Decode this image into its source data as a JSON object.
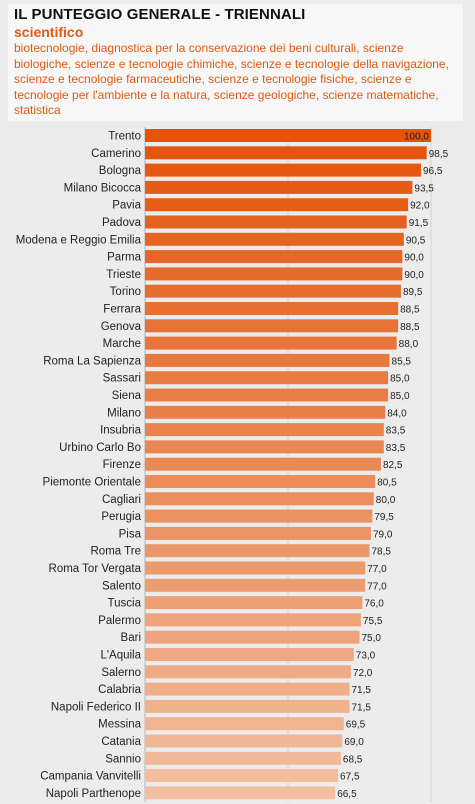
{
  "chart_data": {
    "type": "bar",
    "orientation": "horizontal",
    "title": "IL PUNTEGGIO GENERALE - TRIENNALI",
    "subtitle": "scientifico",
    "description": "biotecnologie, diagnostica per la conservazione dei beni culturali, scienze biologiche, scienze e tecnologie chimiche, scienze e tecnologie della navigazione, scienze e tecnologie farmaceutiche, scienze e tecnologie fisiche, scienze e tecnologie per l'ambiente e la natura, scienze geologiche, scienze matematiche, statistica",
    "categories": [
      "Trento",
      "Camerino",
      "Bologna",
      "Milano Bicocca",
      "Pavia",
      "Padova",
      "Modena e Reggio Emilia",
      "Parma",
      "Trieste",
      "Torino",
      "Ferrara",
      "Genova",
      "Marche",
      "Roma La Sapienza",
      "Sassari",
      "Siena",
      "Milano",
      "Insubria",
      "Urbino Carlo Bo",
      "Firenze",
      "Piemonte Orientale",
      "Cagliari",
      "Perugia",
      "Pisa",
      "Roma Tre",
      "Roma Tor Vergata",
      "Salento",
      "Tuscia",
      "Palermo",
      "Bari",
      "L'Aquila",
      "Salerno",
      "Calabria",
      "Napoli Federico II",
      "Messina",
      "Catania",
      "Sannio",
      "Campania Vanvitelli",
      "Napoli Parthenope"
    ],
    "values": [
      100.0,
      98.5,
      96.5,
      93.5,
      92.0,
      91.5,
      90.5,
      90.0,
      90.0,
      89.5,
      88.5,
      88.5,
      88.0,
      85.5,
      85.0,
      85.0,
      84.0,
      83.5,
      83.5,
      82.5,
      80.5,
      80.0,
      79.5,
      79.0,
      78.5,
      77.0,
      77.0,
      76.0,
      75.5,
      75.0,
      73.0,
      72.0,
      71.5,
      71.5,
      69.5,
      69.0,
      68.5,
      67.5,
      66.5
    ],
    "value_labels": [
      "100,0",
      "98,5",
      "96,5",
      "93,5",
      "92,0",
      "91,5",
      "90,5",
      "90,0",
      "90,0",
      "89,5",
      "88,5",
      "88,5",
      "88,0",
      "85,5",
      "85,0",
      "85,0",
      "84,0",
      "83,5",
      "83,5",
      "82,5",
      "80,5",
      "80,0",
      "79,5",
      "79,0",
      "78,5",
      "77,0",
      "77,0",
      "76,0",
      "75,5",
      "75,0",
      "73,0",
      "72,0",
      "71,5",
      "71,5",
      "69,5",
      "69,0",
      "68,5",
      "67,5",
      "66,5"
    ],
    "color_range": [
      "#e3530a",
      "#f2bfa1"
    ],
    "grid": true
  }
}
